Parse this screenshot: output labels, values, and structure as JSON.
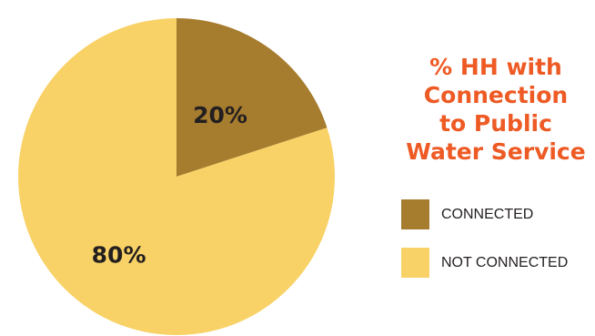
{
  "chart_data": {
    "type": "pie",
    "title": "% HH with\nConnection\nto Public\nWater Service",
    "slices": [
      {
        "name": "CONNECTED",
        "value": 20,
        "label": "20%",
        "color": "#a67c2e"
      },
      {
        "name": "NOT CONNECTED",
        "value": 80,
        "label": "80%",
        "color": "#f8d266"
      }
    ],
    "start_angle_deg": 0,
    "direction": "clockwise",
    "legend_position": "right",
    "title_color": "#ee5a24"
  }
}
